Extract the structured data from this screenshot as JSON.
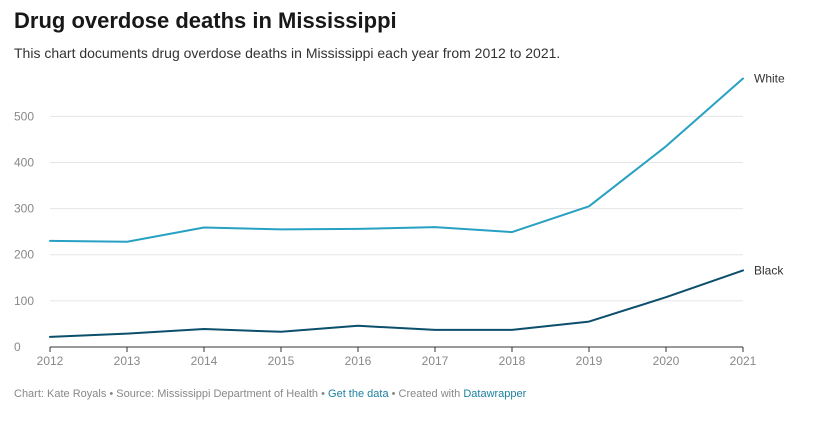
{
  "title": "Drug overdose deaths in Mississippi",
  "subtitle": "This chart documents drug overdose deaths in Mississippi each year from 2012 to 2021.",
  "chart_data": {
    "type": "line",
    "title": "Drug overdose deaths in Mississippi",
    "subtitle": "This chart documents drug overdose deaths in Mississippi each year from 2012 to 2021.",
    "x": [
      2012,
      2013,
      2014,
      2015,
      2016,
      2017,
      2018,
      2019,
      2020,
      2021
    ],
    "ylim": [
      0,
      600
    ],
    "yticks": [
      0,
      100,
      200,
      300,
      400,
      500
    ],
    "grid": true,
    "legend": "direct labels at line ends",
    "series": [
      {
        "name": "White",
        "color": "#27a1c2",
        "values": [
          230,
          228,
          259,
          255,
          256,
          260,
          249,
          305,
          435,
          582
        ]
      },
      {
        "name": "Black",
        "color": "#0b4f6c",
        "values": [
          22,
          29,
          39,
          33,
          46,
          37,
          37,
          55,
          108,
          166
        ]
      }
    ]
  },
  "footer": {
    "chart_credit": "Chart: Kate Royals",
    "sep1": " • ",
    "source": "Source: Mississippi Department of Health",
    "sep2": " • ",
    "data_link": "Get the data",
    "sep3": " • ",
    "created_with": "Created with ",
    "tool_link": "Datawrapper"
  }
}
